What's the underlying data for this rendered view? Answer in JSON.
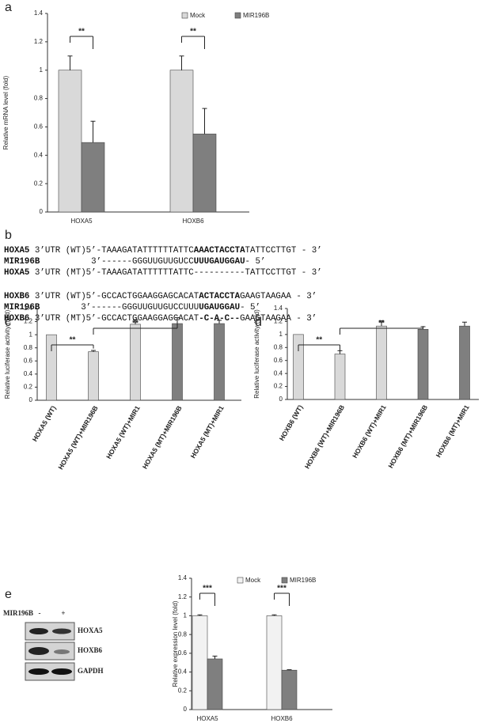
{
  "panel_labels": [
    "a",
    "b",
    "c",
    "d",
    "e"
  ],
  "sequences": [
    [
      {
        "text": "HOXA5",
        "bold": true
      },
      {
        "text": " 3’UTR (WT)5’-TAAAGATATTTTTTATTC",
        "bold": false
      },
      {
        "text": "AAACTACCTA",
        "bold": true
      },
      {
        "text": "TATTCCTTGT - 3’",
        "bold": false
      }
    ],
    [
      {
        "text": "MIR196B",
        "bold": true
      },
      {
        "text": "          3’------GGGUUGUUGUCC",
        "bold": false
      },
      {
        "text": "UUUGAUGGAU",
        "bold": true
      },
      {
        "text": "- 5’",
        "bold": false
      }
    ],
    [
      {
        "text": "HOXA5",
        "bold": true
      },
      {
        "text": " 3’UTR (MT)5’-TAAAGATATTTTTTATTC----------TATTCCTTGT - 3’",
        "bold": false
      }
    ],
    [
      {
        "text": "HOXB6",
        "bold": true
      },
      {
        "text": " 3’UTR (WT)5’-GCCACTGGAAGGAGCACAT",
        "bold": false
      },
      {
        "text": "ACTACCTA",
        "bold": true
      },
      {
        "text": "GAAGTAAGAA - 3’",
        "bold": false
      }
    ],
    [
      {
        "text": "MIR196B",
        "bold": true
      },
      {
        "text": "        3’------GGGUUGUUGUCCUUU",
        "bold": false
      },
      {
        "text": "UGAUGGAU",
        "bold": true
      },
      {
        "text": "- 5’",
        "bold": false
      }
    ],
    [
      {
        "text": "HOXB6",
        "bold": true
      },
      {
        "text": " 3’UTR (MT)5’-GCCACTGGAAGGAGCACAT",
        "bold": false
      },
      {
        "text": "-C-A-C--",
        "bold": true
      },
      {
        "text": "GAAGTAAGAA - 3’",
        "bold": false
      }
    ]
  ],
  "blot": {
    "treatment": "MIR196B",
    "lanes": [
      "-",
      "+"
    ],
    "bands": [
      "HOXA5",
      "HOXB6",
      "GAPDH"
    ]
  },
  "chart_data": [
    {
      "type": "bar",
      "y_label": "Relative mRNA level (fold)",
      "categories": [
        "HOXA5",
        "HOXB6"
      ],
      "series": [
        {
          "name": "Mock",
          "color": "#d9d9d9",
          "values": [
            1,
            1
          ],
          "errors": [
            0.1,
            0.1
          ]
        },
        {
          "name": "MIR196B",
          "color": "#7f7f7f",
          "values": [
            0.49,
            0.55
          ],
          "errors": [
            0.15,
            0.18
          ]
        }
      ],
      "ylim": [
        0,
        1.4
      ],
      "yticks": [
        0,
        0.2,
        0.4,
        0.6,
        0.8,
        1,
        1.2,
        1.4
      ],
      "annotations": [
        "**",
        "**"
      ]
    },
    {
      "type": "bar",
      "y_label": "Relative luciferase activity (fold)",
      "categories": [
        "HOXA5 (WT)",
        "HOXA5 (WT)+MIR196B",
        "HOXA5 (WT)+MIR1",
        "HOXA5 (MT)+MIR196B",
        "HOXA5 (MT)+MIR1"
      ],
      "values": [
        1,
        0.74,
        1.16,
        1.17,
        1.17
      ],
      "errors": [
        null,
        0.02,
        0.07,
        0.09,
        0.05
      ],
      "colors": [
        "#d9d9d9",
        "#d9d9d9",
        "#d9d9d9",
        "#7f7f7f",
        "#7f7f7f"
      ],
      "ylim": [
        0,
        1.4
      ],
      "yticks": [
        0,
        0.2,
        0.4,
        0.6,
        0.8,
        1,
        1.2,
        1.4
      ],
      "annotations": [
        "**",
        "**"
      ]
    },
    {
      "type": "bar",
      "y_label": "Relative luciferase activity (fold)",
      "categories": [
        "HOXB6 (WT)",
        "HOXB6 (WT)+MIR196B",
        "HOXB6 (WT)+MIR1",
        "HOXB6 (MT)+MIR196B",
        "HOXB6 (MT)+MIR1"
      ],
      "values": [
        1,
        0.7,
        1.13,
        1.08,
        1.13
      ],
      "errors": [
        null,
        0.05,
        0.08,
        0.04,
        0.06
      ],
      "colors": [
        "#d9d9d9",
        "#d9d9d9",
        "#d9d9d9",
        "#7f7f7f",
        "#7f7f7f"
      ],
      "ylim": [
        0,
        1.4
      ],
      "yticks": [
        0,
        0.2,
        0.4,
        0.6,
        0.8,
        1,
        1.2,
        1.4
      ],
      "annotations": [
        "**",
        "**"
      ]
    },
    {
      "type": "bar",
      "y_label": "Relative expression level (fold)",
      "categories": [
        "HOXA5",
        "HOXB6"
      ],
      "series": [
        {
          "name": "Mock",
          "color": "#f2f2f2",
          "values": [
            1,
            1
          ],
          "errors": [
            0.01,
            0.01
          ]
        },
        {
          "name": "MIR196B",
          "color": "#7f7f7f",
          "values": [
            0.54,
            0.42
          ],
          "errors": [
            0.03,
            0.005
          ]
        }
      ],
      "ylim": [
        0,
        1.4
      ],
      "yticks": [
        0,
        0.2,
        0.4,
        0.6,
        0.8,
        1,
        1.2,
        1.4
      ],
      "annotations": [
        "***",
        "***"
      ]
    }
  ]
}
